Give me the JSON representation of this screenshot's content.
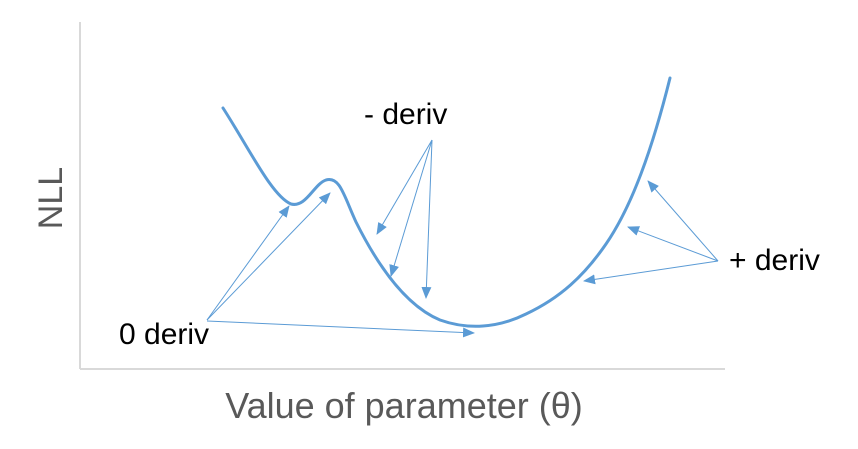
{
  "colors": {
    "curve": "#5b9bd5",
    "arrow": "#5b9bd5",
    "axis": "#d9d9d9",
    "label": "#000000",
    "axis_label": "#595959"
  },
  "axes": {
    "y_label": "NLL",
    "x_label": "Value of parameter (θ)"
  },
  "annotations": {
    "zero_deriv": "0 deriv",
    "neg_deriv": "- deriv",
    "pos_deriv": "+ deriv"
  }
}
